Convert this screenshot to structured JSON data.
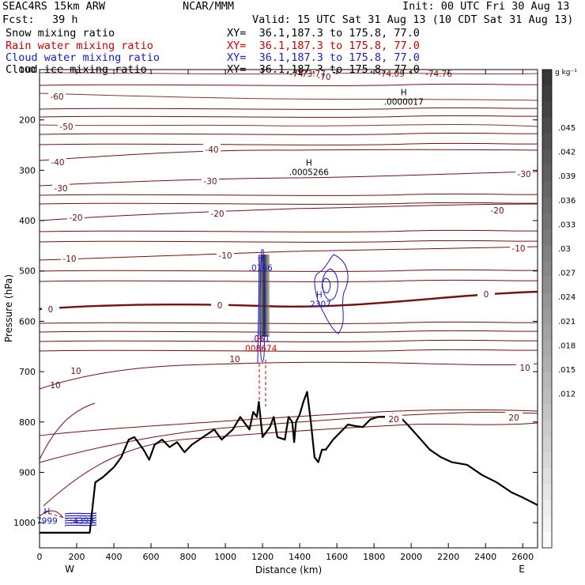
{
  "header": {
    "model": "SEAC4RS 15km ARW",
    "center": "NCAR/MMM",
    "init": "Init: 00 UTC Fri 30 Aug 13",
    "fcst_label": "Fcst:",
    "fcst_value": "39 h",
    "valid": "Valid: 15 UTC Sat 31 Aug 13 (10 CDT Sat 31 Aug 13)",
    "fields": [
      {
        "name": "Snow mixing ratio",
        "xy": "XY=  36.1,187.3 to 175.8, 77.0",
        "color": "#000000"
      },
      {
        "name": "Rain water mixing ratio",
        "xy": "XY=  36.1,187.3 to 175.8, 77.0",
        "color": "#cc0000"
      },
      {
        "name": "Cloud water mixing ratio",
        "xy": "XY=  36.1,187.3 to 175.8, 77.0",
        "color": "#1a1acc"
      },
      {
        "name": "Cloud ice mixing ratio",
        "xy": "XY=  36.1,187.3 to 175.8, 77.0",
        "color": "#000000"
      }
    ]
  },
  "chart_data": {
    "type": "cross-section contour",
    "xlabel": "Distance (km)",
    "ylabel": "Pressure (hPa)",
    "xlim": [
      0,
      2680
    ],
    "ylim": [
      1050,
      100
    ],
    "x_ticks": [
      0,
      200,
      400,
      600,
      800,
      1000,
      1200,
      1400,
      1600,
      1800,
      2000,
      2200,
      2400,
      2600
    ],
    "y_ticks": [
      100,
      200,
      300,
      400,
      500,
      600,
      700,
      800,
      900,
      1000
    ],
    "y_tick_labels": [
      "100",
      "200",
      "300",
      "400",
      "500",
      "600",
      "700",
      "800",
      "900",
      "1000"
    ],
    "x_endpoints": {
      "left": "W",
      "right": "E"
    },
    "colorbar": {
      "units": "g kg⁻¹",
      "labels": [
        ".045",
        ".042",
        ".039",
        ".036",
        ".033",
        ".03",
        ".027",
        ".024",
        ".021",
        ".018",
        ".015",
        ".012"
      ]
    },
    "temperature_contours": [
      {
        "level": -70,
        "labels": [
          "-70"
        ]
      },
      {
        "level": -60,
        "labels": [
          "-60"
        ]
      },
      {
        "level": -50,
        "labels": [
          "-50"
        ]
      },
      {
        "level": -40,
        "labels": [
          "-40",
          "-40"
        ]
      },
      {
        "level": -30,
        "labels": [
          "-30",
          "-30",
          "-30"
        ]
      },
      {
        "level": -20,
        "labels": [
          "-20",
          "-20",
          "-20"
        ]
      },
      {
        "level": -10,
        "labels": [
          "-10",
          "-10",
          "-10"
        ]
      },
      {
        "level": 0,
        "labels": [
          "0",
          "0",
          "0"
        ]
      },
      {
        "level": 10,
        "labels": [
          "10",
          "10",
          "10"
        ]
      },
      {
        "level": 20,
        "labels": [
          "20",
          "20"
        ]
      }
    ],
    "top_labels": [
      "-74",
      "-73.77",
      "-74.09",
      "-74.76"
    ],
    "terrain_km_hpa": [
      [
        0,
        1020
      ],
      [
        270,
        1020
      ],
      [
        300,
        920
      ],
      [
        340,
        910
      ],
      [
        400,
        890
      ],
      [
        440,
        870
      ],
      [
        480,
        835
      ],
      [
        510,
        830
      ],
      [
        560,
        855
      ],
      [
        590,
        875
      ],
      [
        620,
        845
      ],
      [
        660,
        835
      ],
      [
        700,
        850
      ],
      [
        740,
        840
      ],
      [
        780,
        860
      ],
      [
        820,
        845
      ],
      [
        880,
        830
      ],
      [
        940,
        815
      ],
      [
        980,
        835
      ],
      [
        1040,
        815
      ],
      [
        1080,
        790
      ],
      [
        1100,
        800
      ],
      [
        1130,
        815
      ],
      [
        1150,
        780
      ],
      [
        1170,
        790
      ],
      [
        1180,
        760
      ],
      [
        1200,
        830
      ],
      [
        1240,
        810
      ],
      [
        1260,
        790
      ],
      [
        1280,
        830
      ],
      [
        1320,
        835
      ],
      [
        1340,
        790
      ],
      [
        1360,
        800
      ],
      [
        1370,
        840
      ],
      [
        1380,
        800
      ],
      [
        1400,
        785
      ],
      [
        1420,
        760
      ],
      [
        1440,
        740
      ],
      [
        1460,
        800
      ],
      [
        1480,
        870
      ],
      [
        1500,
        880
      ],
      [
        1520,
        855
      ],
      [
        1540,
        855
      ],
      [
        1580,
        835
      ],
      [
        1620,
        820
      ],
      [
        1660,
        805
      ],
      [
        1700,
        808
      ],
      [
        1740,
        810
      ],
      [
        1780,
        795
      ],
      [
        1820,
        790
      ],
      [
        1860,
        790
      ],
      [
        1900,
        784
      ],
      [
        1940,
        790
      ],
      [
        1980,
        805
      ],
      [
        2040,
        830
      ],
      [
        2100,
        855
      ],
      [
        2160,
        870
      ],
      [
        2220,
        880
      ],
      [
        2300,
        885
      ],
      [
        2380,
        905
      ],
      [
        2460,
        920
      ],
      [
        2540,
        940
      ],
      [
        2600,
        950
      ],
      [
        2680,
        965
      ]
    ],
    "markers": [
      {
        "label": "H",
        "value": ".0000017",
        "x": 1960,
        "p": 170,
        "color": "#000000"
      },
      {
        "label": "H",
        "value": ".0005266",
        "x": 1450,
        "p": 310,
        "color": "#000000"
      },
      {
        "label": "H",
        "value": ".0166",
        "x": 1190,
        "p": 500,
        "color": "#1a1acc"
      },
      {
        "label": "H",
        "value": ".2307",
        "x": 1505,
        "p": 572,
        "color": "#1a1acc"
      },
      {
        "label": "",
        "value": ".061",
        "x": 1190,
        "p": 640,
        "color": "#1a1acc"
      },
      {
        "label": "H",
        "value": ".008674",
        "x": 1185,
        "p": 660,
        "color": "#cc0000"
      },
      {
        "label": "H",
        "value": "7999",
        "x": 40,
        "p": 1002,
        "color": "#1a1acc"
      },
      {
        "label": "",
        "value": ".4393",
        "x": 230,
        "p": 1002,
        "color": "#1a1acc"
      }
    ]
  }
}
